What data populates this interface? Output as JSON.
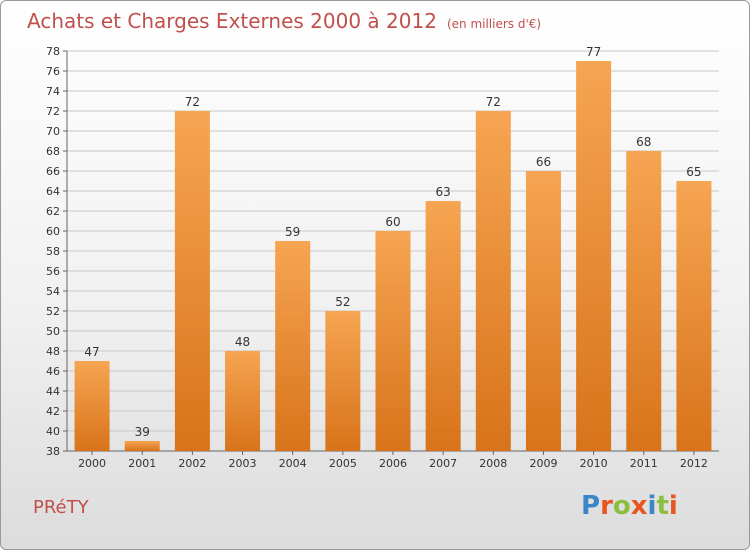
{
  "header": {
    "title": "Achats et Charges Externes 2000 à 2012",
    "unit": "(en milliers d'€)"
  },
  "footer": {
    "commune": "PRéTY",
    "logo": [
      "P",
      "r",
      "o",
      "x",
      "i",
      "t",
      "i"
    ],
    "logo_colors": [
      "#3b86c8",
      "#e8551f",
      "#8cbf3f",
      "#e8551f",
      "#3b86c8",
      "#8cbf3f",
      "#e8551f"
    ]
  },
  "chart_data": {
    "type": "bar",
    "title": "Achats et Charges Externes 2000 à 2012",
    "categories": [
      "2000",
      "2001",
      "2002",
      "2003",
      "2004",
      "2005",
      "2006",
      "2007",
      "2008",
      "2009",
      "2010",
      "2011",
      "2012"
    ],
    "values": [
      47,
      39,
      72,
      48,
      59,
      52,
      60,
      63,
      72,
      66,
      77,
      68,
      65
    ],
    "ylim": [
      38,
      78
    ],
    "yticks": [
      38,
      40,
      42,
      44,
      46,
      48,
      50,
      52,
      54,
      56,
      58,
      60,
      62,
      64,
      66,
      68,
      70,
      72,
      74,
      76,
      78
    ],
    "grid": true,
    "colors": {
      "bar_light": "#f6a552",
      "bar_dark": "#d8731a",
      "grid": "#c8c8c8"
    }
  }
}
